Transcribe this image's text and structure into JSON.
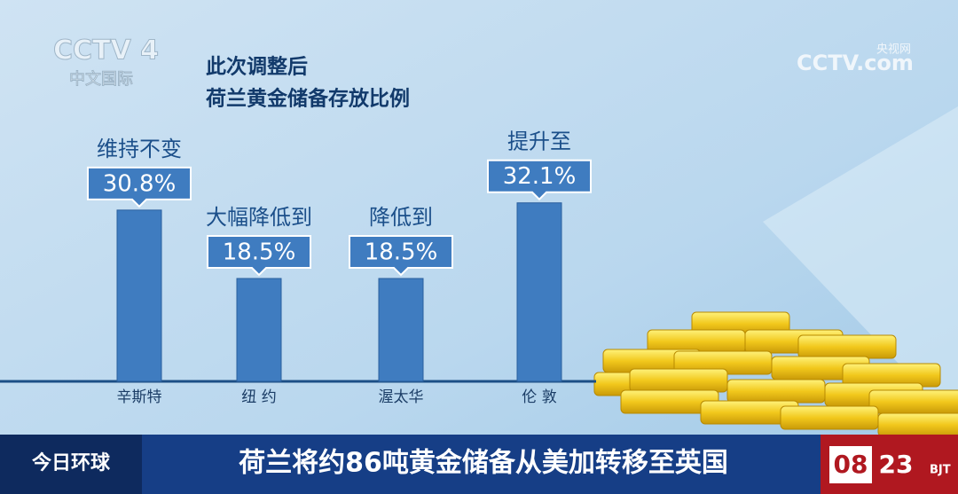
{
  "chart_data": {
    "type": "bar",
    "title": [
      "此次调整后",
      "荷兰黄金储备存放比例"
    ],
    "categories": [
      "辛斯特",
      "纽 约",
      "渥太华",
      "伦 敦"
    ],
    "annotations": [
      "维持不变",
      "大幅降低到",
      "降低到",
      "提升至"
    ],
    "values": [
      30.8,
      18.5,
      18.5,
      32.1
    ],
    "value_labels": [
      "30.8%",
      "18.5%",
      "18.5%",
      "32.1%"
    ],
    "color": "#3f7cc0"
  },
  "broadcast": {
    "channel": "CCTV 4",
    "channel_name": "中文国际",
    "site": "央视网",
    "site_logo": "CCTV.com",
    "program": "今日环球",
    "headline": "荷兰将约86吨黄金储备从美加转移至英国",
    "hour": "08",
    "minute": "23",
    "zone": "BJT"
  }
}
